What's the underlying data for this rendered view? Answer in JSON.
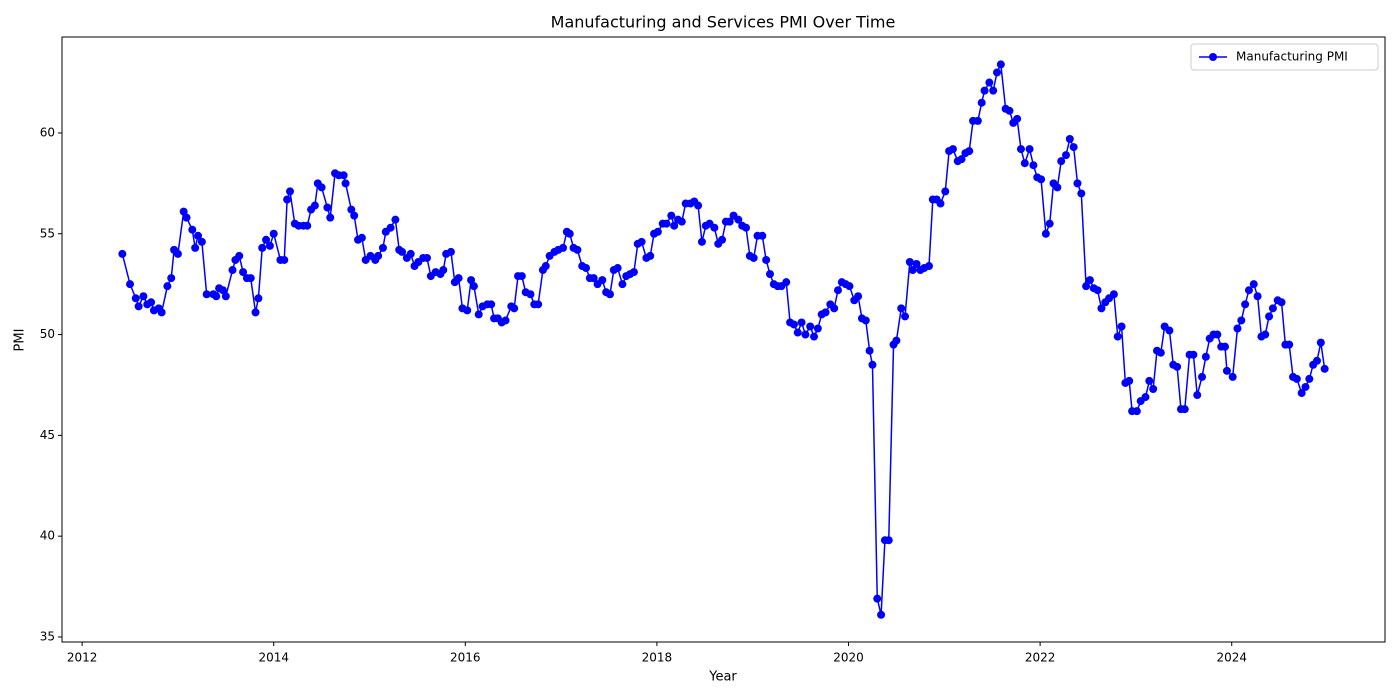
{
  "chart_data": {
    "type": "line",
    "title": "Manufacturing and Services PMI Over Time",
    "x_label": "Year",
    "y_label": "PMI",
    "xlim": [
      2011.79,
      2025.6
    ],
    "xticks": [
      2012,
      2014,
      2016,
      2018,
      2020,
      2022,
      2024
    ],
    "ylim": [
      34.75,
      64.76
    ],
    "yticks": [
      35,
      40,
      45,
      50,
      55,
      60
    ],
    "legend": "upper right",
    "grid": false,
    "x": [
      2012.42,
      2012.5,
      2012.56,
      2012.59,
      2012.64,
      2012.68,
      2012.72,
      2012.75,
      2012.8,
      2012.83,
      2012.89,
      2012.93,
      2012.96,
      2013.0,
      2013.06,
      2013.09,
      2013.15,
      2013.18,
      2013.21,
      2013.25,
      2013.3,
      2013.37,
      2013.4,
      2013.43,
      2013.47,
      2013.5,
      2013.57,
      2013.6,
      2013.64,
      2013.68,
      2013.72,
      2013.76,
      2013.81,
      2013.84,
      2013.88,
      2013.92,
      2013.96,
      2014.0,
      2014.07,
      2014.11,
      2014.14,
      2014.17,
      2014.22,
      2014.26,
      2014.31,
      2014.35,
      2014.39,
      2014.43,
      2014.46,
      2014.5,
      2014.56,
      2014.59,
      2014.64,
      2014.68,
      2014.73,
      2014.75,
      2014.81,
      2014.84,
      2014.88,
      2014.92,
      2014.96,
      2015.01,
      2015.06,
      2015.09,
      2015.14,
      2015.17,
      2015.22,
      2015.27,
      2015.31,
      2015.34,
      2015.39,
      2015.43,
      2015.47,
      2015.51,
      2015.56,
      2015.6,
      2015.64,
      2015.69,
      2015.74,
      2015.77,
      2015.8,
      2015.85,
      2015.89,
      2015.93,
      2015.97,
      2016.02,
      2016.06,
      2016.09,
      2016.14,
      2016.18,
      2016.23,
      2016.27,
      2016.3,
      2016.34,
      2016.38,
      2016.42,
      2016.48,
      2016.51,
      2016.55,
      2016.59,
      2016.63,
      2016.68,
      2016.72,
      2016.76,
      2016.81,
      2016.84,
      2016.88,
      2016.93,
      2016.97,
      2017.02,
      2017.06,
      2017.09,
      2017.13,
      2017.17,
      2017.22,
      2017.26,
      2017.3,
      2017.34,
      2017.38,
      2017.43,
      2017.47,
      2017.51,
      2017.55,
      2017.59,
      2017.64,
      2017.68,
      2017.72,
      2017.76,
      2017.8,
      2017.84,
      2017.89,
      2017.93,
      2017.97,
      2018.01,
      2018.06,
      2018.1,
      2018.15,
      2018.18,
      2018.22,
      2018.26,
      2018.3,
      2018.35,
      2018.39,
      2018.43,
      2018.47,
      2018.51,
      2018.55,
      2018.6,
      2018.64,
      2018.68,
      2018.72,
      2018.76,
      2018.8,
      2018.85,
      2018.89,
      2018.93,
      2018.97,
      2019.01,
      2019.05,
      2019.1,
      2019.14,
      2019.18,
      2019.22,
      2019.26,
      2019.3,
      2019.35,
      2019.39,
      2019.43,
      2019.47,
      2019.51,
      2019.55,
      2019.6,
      2019.64,
      2019.68,
      2019.72,
      2019.76,
      2019.81,
      2019.85,
      2019.89,
      2019.93,
      2019.97,
      2020.01,
      2020.06,
      2020.1,
      2020.14,
      2020.18,
      2020.22,
      2020.25,
      2020.3,
      2020.34,
      2020.38,
      2020.42,
      2020.47,
      2020.5,
      2020.55,
      2020.59,
      2020.64,
      2020.67,
      2020.71,
      2020.75,
      2020.79,
      2020.84,
      2020.88,
      2020.92,
      2020.96,
      2021.01,
      2021.05,
      2021.09,
      2021.14,
      2021.18,
      2021.22,
      2021.26,
      2021.3,
      2021.35,
      2021.39,
      2021.42,
      2021.47,
      2021.51,
      2021.55,
      2021.59,
      2021.64,
      2021.68,
      2021.72,
      2021.76,
      2021.8,
      2021.84,
      2021.89,
      2021.93,
      2021.97,
      2022.01,
      2022.06,
      2022.1,
      2022.14,
      2022.18,
      2022.22,
      2022.27,
      2022.31,
      2022.35,
      2022.39,
      2022.43,
      2022.48,
      2022.52,
      2022.56,
      2022.6,
      2022.64,
      2022.68,
      2022.72,
      2022.77,
      2022.81,
      2022.85,
      2022.89,
      2022.93,
      2022.96,
      2023.01,
      2023.05,
      2023.1,
      2023.14,
      2023.18,
      2023.22,
      2023.26,
      2023.3,
      2023.35,
      2023.39,
      2023.43,
      2023.47,
      2023.51,
      2023.56,
      2023.6,
      2023.64,
      2023.69,
      2023.73,
      2023.77,
      2023.81,
      2023.85,
      2023.89,
      2023.93,
      2023.95,
      2024.01,
      2024.06,
      2024.1,
      2024.14,
      2024.18,
      2024.23,
      2024.27,
      2024.31,
      2024.35,
      2024.39,
      2024.43,
      2024.48,
      2024.52,
      2024.56,
      2024.6,
      2024.64,
      2024.68,
      2024.73,
      2024.77,
      2024.81,
      2024.85,
      2024.89,
      2024.93,
      2024.97
    ],
    "series": [
      {
        "name": "Manufacturing PMI",
        "color": "#0000ff",
        "values": [
          54.0,
          52.5,
          51.8,
          51.4,
          51.9,
          51.5,
          51.6,
          51.2,
          51.3,
          51.1,
          52.4,
          52.8,
          54.2,
          54.0,
          56.1,
          55.8,
          55.2,
          54.3,
          54.9,
          54.6,
          52.0,
          52.0,
          51.9,
          52.3,
          52.2,
          51.9,
          53.2,
          53.7,
          53.9,
          53.1,
          52.8,
          52.8,
          51.1,
          51.8,
          54.3,
          54.7,
          54.4,
          55.0,
          53.7,
          53.7,
          56.7,
          57.1,
          55.5,
          55.4,
          55.4,
          55.4,
          56.2,
          56.4,
          57.5,
          57.3,
          56.3,
          55.8,
          58.0,
          57.9,
          57.9,
          57.5,
          56.2,
          55.9,
          54.7,
          54.8,
          53.7,
          53.9,
          53.7,
          53.9,
          54.3,
          55.1,
          55.3,
          55.7,
          54.2,
          54.1,
          53.8,
          54.0,
          53.4,
          53.6,
          53.8,
          53.8,
          52.9,
          53.1,
          53.0,
          53.2,
          54.0,
          54.1,
          52.6,
          52.8,
          51.3,
          51.2,
          52.7,
          52.4,
          51.0,
          51.4,
          51.5,
          51.5,
          50.8,
          50.8,
          50.6,
          50.7,
          51.4,
          51.3,
          52.9,
          52.9,
          52.1,
          52.0,
          51.5,
          51.5,
          53.2,
          53.4,
          53.9,
          54.1,
          54.2,
          54.3,
          55.1,
          55.0,
          54.3,
          54.2,
          53.4,
          53.3,
          52.8,
          52.8,
          52.5,
          52.7,
          52.1,
          52.0,
          53.2,
          53.3,
          52.5,
          52.9,
          53.0,
          53.1,
          54.5,
          54.6,
          53.8,
          53.9,
          55.0,
          55.1,
          55.5,
          55.5,
          55.9,
          55.4,
          55.7,
          55.6,
          56.5,
          56.5,
          56.6,
          56.4,
          54.6,
          55.4,
          55.5,
          55.3,
          54.5,
          54.7,
          55.6,
          55.6,
          55.9,
          55.7,
          55.4,
          55.3,
          53.9,
          53.8,
          54.9,
          54.9,
          53.7,
          53.0,
          52.5,
          52.4,
          52.4,
          52.6,
          50.6,
          50.5,
          50.1,
          50.6,
          50.0,
          50.4,
          49.9,
          50.3,
          51.0,
          51.1,
          51.5,
          51.3,
          52.2,
          52.6,
          52.5,
          52.4,
          51.7,
          51.9,
          50.8,
          50.7,
          49.2,
          48.5,
          36.9,
          36.1,
          39.8,
          39.8,
          49.5,
          49.7,
          51.3,
          50.9,
          53.6,
          53.2,
          53.5,
          53.2,
          53.3,
          53.4,
          56.7,
          56.7,
          56.5,
          57.1,
          59.1,
          59.2,
          58.6,
          58.7,
          59.0,
          59.1,
          60.6,
          60.6,
          61.5,
          62.1,
          62.5,
          62.1,
          63.0,
          63.4,
          61.2,
          61.1,
          60.5,
          60.7,
          59.2,
          58.5,
          59.2,
          58.4,
          57.8,
          57.7,
          55.0,
          55.5,
          57.5,
          57.3,
          58.6,
          58.9,
          59.7,
          59.3,
          57.5,
          57.0,
          52.4,
          52.7,
          52.3,
          52.2,
          51.3,
          51.6,
          51.8,
          52.0,
          49.9,
          50.4,
          47.6,
          47.7,
          46.2,
          46.2,
          46.7,
          46.9,
          47.7,
          47.3,
          49.2,
          49.1,
          50.4,
          50.2,
          48.5,
          48.4,
          46.3,
          46.3,
          49.0,
          49.0,
          47.0,
          47.9,
          48.9,
          49.8,
          50.0,
          50.0,
          49.4,
          49.4,
          48.2,
          47.9,
          50.3,
          50.7,
          51.5,
          52.2,
          52.5,
          51.9,
          49.9,
          50.0,
          50.9,
          51.3,
          51.7,
          51.6,
          49.5,
          49.5,
          47.9,
          47.8,
          47.1,
          47.4,
          47.8,
          48.5,
          48.7,
          49.6,
          48.3
        ]
      }
    ]
  }
}
